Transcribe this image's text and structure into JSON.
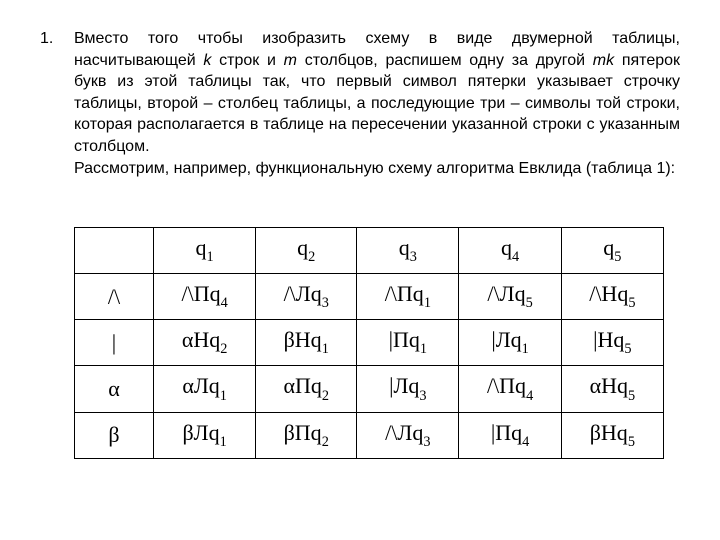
{
  "list_number": "1.",
  "paragraph": {
    "line1a": "Вместо того чтобы изобразить схему в виде двумерной таблицы, насчитывающей ",
    "k": "k",
    "line1b": " строк и ",
    "m": "m",
    "line1c": " столбцов, распишем одну за другой ",
    "mk": "mk",
    "line1d": " пятерок букв из этой таблицы так, что первый символ пятерки указывает строчку таблицы, второй – столбец таблицы, а последующие три – символы той строки, которая располагается в таблице на пересечении указанной строки с указанным столбцом.",
    "line2": "Рассмотрим, например, функциональную схему алгоритма Евклида (таблица 1):"
  },
  "table": {
    "columns": [
      {
        "base": "q",
        "sub": "1"
      },
      {
        "base": "q",
        "sub": "2"
      },
      {
        "base": "q",
        "sub": "3"
      },
      {
        "base": "q",
        "sub": "4"
      },
      {
        "base": "q",
        "sub": "5"
      }
    ],
    "rows": [
      {
        "hdr": "/\\",
        "cells": [
          {
            "pre": "/\\Пq",
            "sub": "4"
          },
          {
            "pre": "/\\Лq",
            "sub": "3"
          },
          {
            "pre": "/\\Пq",
            "sub": "1"
          },
          {
            "pre": "/\\Лq",
            "sub": "5"
          },
          {
            "pre": "/\\Нq",
            "sub": "5"
          }
        ]
      },
      {
        "hdr": "|",
        "cells": [
          {
            "pre": "αНq",
            "sub": "2"
          },
          {
            "pre": "βНq",
            "sub": "1"
          },
          {
            "pre": "|Пq",
            "sub": "1"
          },
          {
            "pre": "|Лq",
            "sub": "1"
          },
          {
            "pre": "|Нq",
            "sub": "5"
          }
        ]
      },
      {
        "hdr": "α",
        "cells": [
          {
            "pre": "αЛq",
            "sub": "1"
          },
          {
            "pre": "αПq",
            "sub": "2"
          },
          {
            "pre": "|Лq",
            "sub": "3"
          },
          {
            "pre": "/\\Пq",
            "sub": "4"
          },
          {
            "pre": "αНq",
            "sub": "5"
          }
        ]
      },
      {
        "hdr": "β",
        "cells": [
          {
            "pre": "βЛq",
            "sub": "1"
          },
          {
            "pre": "βПq",
            "sub": "2"
          },
          {
            "pre": "/\\Лq",
            "sub": "3"
          },
          {
            "pre": "|Пq",
            "sub": "4"
          },
          {
            "pre": "βНq",
            "sub": "5"
          }
        ]
      }
    ]
  }
}
